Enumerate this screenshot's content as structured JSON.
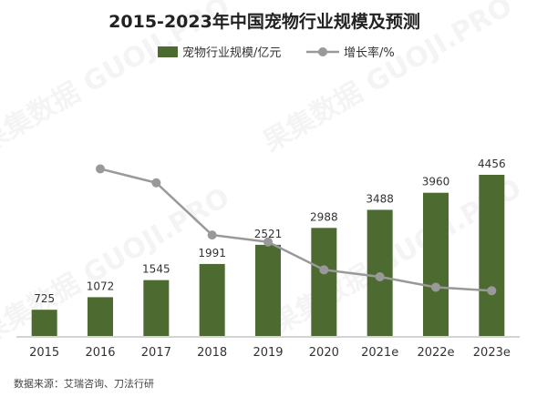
{
  "chart_data": {
    "type": "bar",
    "title": "2015-2023年中国宠物行业规模及预测",
    "categories": [
      "2015",
      "2016",
      "2017",
      "2018",
      "2019",
      "2020",
      "2021e",
      "2022e",
      "2023e"
    ],
    "series": [
      {
        "name": "宠物行业规模/亿元",
        "type": "bar",
        "values": [
          725,
          1072,
          1545,
          1991,
          2521,
          2988,
          3488,
          3960,
          4456
        ]
      },
      {
        "name": "增长率/%",
        "type": "line",
        "values": [
          null,
          48,
          44,
          29,
          27,
          19,
          17,
          14,
          13
        ]
      }
    ],
    "ylim": [
      0,
      5000
    ],
    "y2lim": [
      0,
      70
    ],
    "legend_position": "top-center",
    "grid": false,
    "colors": {
      "bar": "#4d6b30",
      "line": "#999999",
      "title": "#222222",
      "text": "#333333",
      "axis": "#aaaaaa"
    },
    "source": "数据来源：艾瑞咨询、刀法行研"
  },
  "watermark": "果集数据 GUOJI.PRO"
}
